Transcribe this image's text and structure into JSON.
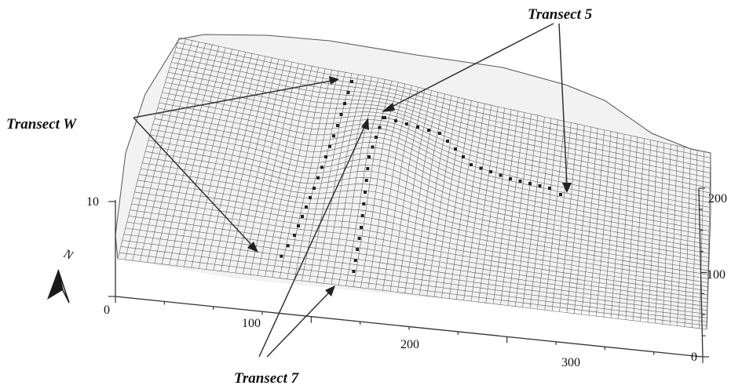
{
  "labels": {
    "transect_5": "Transect 5",
    "transect_w": "Transect W",
    "transect_7": "Transect 7"
  },
  "vertical_axis": {
    "ticks": [
      "10",
      "0"
    ]
  },
  "right_axis": {
    "ticks": [
      "200",
      "100",
      "0"
    ]
  },
  "bottom_axis": {
    "ticks": [
      "100",
      "200",
      "300"
    ]
  },
  "north_arrow": {
    "letter": "N"
  },
  "colors": {
    "mesh": "#5a5a5a",
    "surface": "#f2f2f2",
    "ink": "#222222"
  }
}
